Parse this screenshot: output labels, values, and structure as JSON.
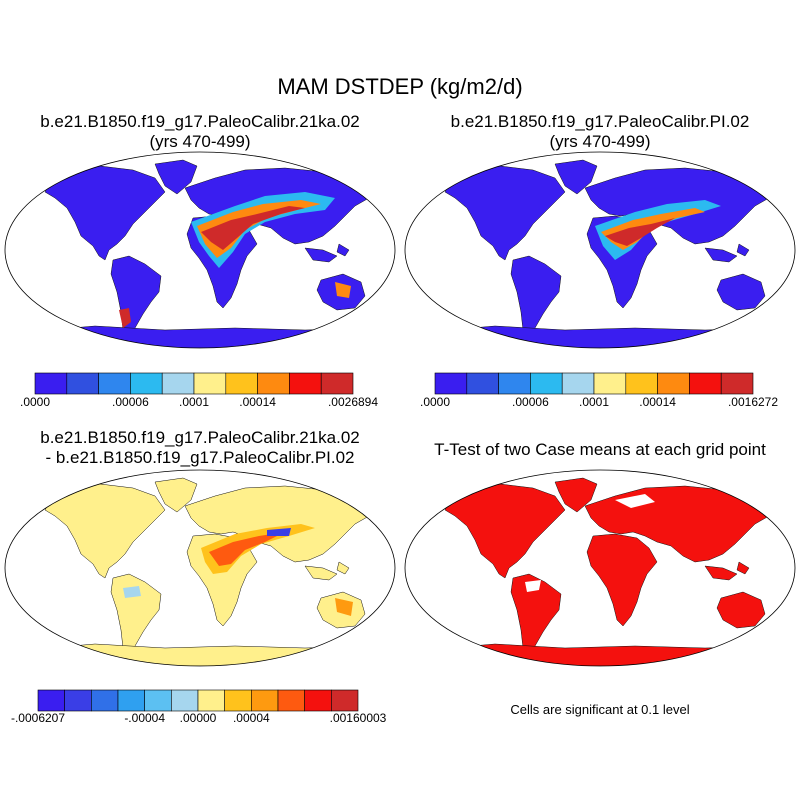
{
  "main_title": "MAM DSTDEP (kg/m2/d)",
  "panels": [
    {
      "id": "p1",
      "title1": "b.e21.B1850.f19_g17.PaleoCalibr.21ka.02",
      "title2": "(yrs 470-499)"
    },
    {
      "id": "p2",
      "title1": "b.e21.B1850.f19_g17.PaleoCalibr.PI.02",
      "title2": "(yrs 470-499)"
    },
    {
      "id": "p3",
      "title1": "b.e21.B1850.f19_g17.PaleoCalibr.21ka.02",
      "title2": "- b.e21.B1850.f19_g17.PaleoCalibr.PI.02"
    },
    {
      "id": "p4",
      "title1": "T-Test of two Case means at each grid point",
      "title2": ""
    }
  ],
  "colorbars": [
    {
      "id": "cb1",
      "colors": [
        "#3a1ef0",
        "#3050e0",
        "#2f86ee",
        "#2cbaf0",
        "#a6d6ee",
        "#fff08c",
        "#ffc21c",
        "#fe8a10",
        "#f4110e",
        "#cf2a2a"
      ],
      "labels": [
        ".0000",
        ".00006",
        ".0001",
        ".00014",
        ".0026894"
      ],
      "label_slots": [
        0,
        3,
        5,
        7,
        10
      ]
    },
    {
      "id": "cb2",
      "colors": [
        "#3a1ef0",
        "#3050e0",
        "#2f86ee",
        "#2cbaf0",
        "#a6d6ee",
        "#fff08c",
        "#ffc21c",
        "#fe8a10",
        "#f4110e",
        "#cf2a2a"
      ],
      "labels": [
        ".0000",
        ".00006",
        ".0001",
        ".00014",
        ".0016272"
      ],
      "label_slots": [
        0,
        3,
        5,
        7,
        10
      ]
    },
    {
      "id": "cb3",
      "colors": [
        "#3a1ef0",
        "#3a3ee6",
        "#3070e8",
        "#2fa0f0",
        "#5cc0f2",
        "#a6d6ee",
        "#fff08c",
        "#ffc21c",
        "#fe9a10",
        "#fe5a10",
        "#f4110e",
        "#cf2a2a"
      ],
      "labels": [
        "-.0006207",
        "-.00004",
        ".00000",
        ".00004",
        ".00160003"
      ],
      "label_slots": [
        0,
        4,
        6,
        8,
        12
      ]
    }
  ],
  "note": "Cells are significant at 0.1 level",
  "colors": {
    "land_low": "#3a1ef0",
    "dust_mid": "#2cbaf0",
    "dust_high": "#fe8a10",
    "dust_max": "#cf2a2a",
    "diff_base": "#fff08c",
    "significant": "#f4110e"
  }
}
